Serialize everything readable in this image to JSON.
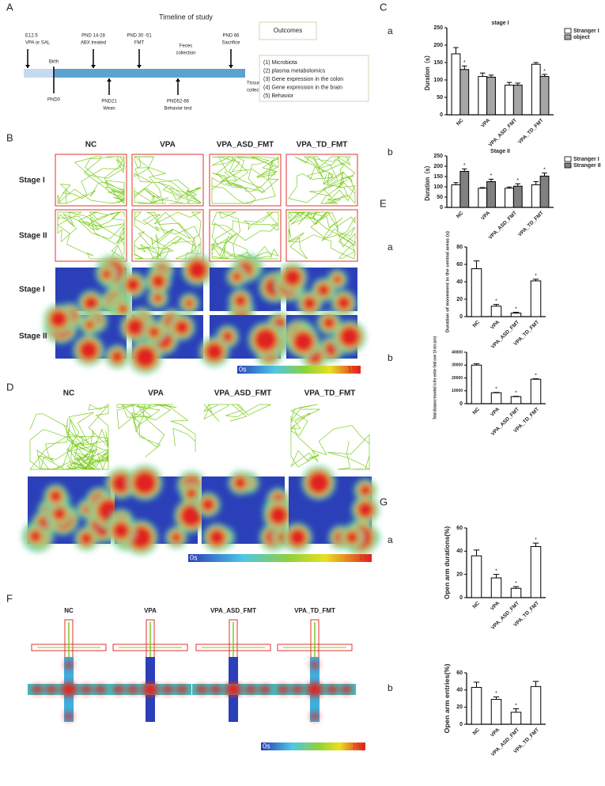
{
  "panel_letters": [
    "A",
    "B",
    "C",
    "D",
    "E",
    "F",
    "G"
  ],
  "sub_letters": [
    "a",
    "b",
    "a",
    "b",
    "a",
    "b"
  ],
  "timeline": {
    "title": "Timeline of study",
    "above": [
      [
        "E12.5",
        "VPA or SAL"
      ],
      [
        "Birth"
      ],
      [
        "PND 14-28",
        "ABX treated"
      ],
      [
        "PND 30 -51",
        "FMT"
      ],
      [
        "Feces",
        "collection"
      ],
      [
        "PND 66",
        "Sacrifice"
      ]
    ],
    "below": [
      [
        "PND0"
      ],
      [
        "PND21",
        "Wean"
      ],
      [
        "PND52-66",
        "Behavior test"
      ],
      [
        "Tissue/blood",
        "collection"
      ]
    ],
    "outcomes_title": "Outcomes",
    "outcomes": [
      "(1) Microbiota",
      "(2) plasma metabolomics",
      "(3) Gene expression  in the colon",
      "(4) Gene expression  in the brain",
      "(5) Behavior"
    ]
  },
  "groups": [
    "NC",
    "VPA",
    "VPA_ASD_FMT",
    "VPA_TD_FMT"
  ],
  "panel_b": {
    "rows": [
      "Stage I",
      "Stage II",
      "Stage I",
      "Stage II"
    ],
    "scale": [
      "0s",
      "10s"
    ]
  },
  "panel_d": {
    "scale": [
      "0s",
      "10s"
    ]
  },
  "panel_f": {
    "scale": [
      "0s",
      "10s"
    ]
  },
  "chart_data": [
    {
      "type": "bar",
      "title": "stage I",
      "ylabel": "Duration（s）",
      "categories": [
        "NC",
        "VPA",
        "VPA_ASD_FMT",
        "VPA_TD_FMT"
      ],
      "series": [
        {
          "name": "Stranger I",
          "color": "#ffffff",
          "values": [
            175,
            110,
            85,
            145
          ],
          "errors": [
            18,
            10,
            8,
            5
          ],
          "significance": [
            null,
            null,
            null,
            null
          ]
        },
        {
          "name": "object",
          "color": "#a6a6a6",
          "values": [
            130,
            108,
            85,
            110
          ],
          "errors": [
            10,
            6,
            6,
            6
          ],
          "significance": [
            "*",
            null,
            null,
            "*"
          ]
        }
      ],
      "ylim": [
        0,
        250
      ],
      "yticks": [
        0,
        50,
        100,
        150,
        200,
        250
      ]
    },
    {
      "type": "bar",
      "title": "Stage II",
      "ylabel": "Duration（s）",
      "categories": [
        "NC",
        "VPA",
        "VPA_ASD_FMT",
        "VPA_TD_FMT"
      ],
      "series": [
        {
          "name": "Stranger I",
          "color": "#ffffff",
          "values": [
            110,
            93,
            93,
            110
          ],
          "errors": [
            10,
            3,
            6,
            15
          ],
          "significance": [
            null,
            null,
            null,
            null
          ]
        },
        {
          "name": "Stranger II",
          "color": "#808080",
          "values": [
            175,
            125,
            103,
            152
          ],
          "errors": [
            12,
            12,
            12,
            15
          ],
          "significance": [
            "*",
            "*",
            "*",
            "*"
          ]
        }
      ],
      "ylim": [
        0,
        250
      ],
      "yticks": [
        0,
        50,
        100,
        150,
        200,
        250
      ]
    },
    {
      "type": "bar",
      "ylabel": "Duration of movement in the central areas (s)",
      "categories": [
        "NC",
        "VPA",
        "VPA_ASD_FMT",
        "VPA_TD_FMT"
      ],
      "series": [
        {
          "color": "#ffffff",
          "values": [
            55,
            12,
            4,
            41
          ],
          "errors": [
            9,
            2,
            1,
            2
          ],
          "significance": [
            null,
            "*",
            "*",
            "*"
          ]
        }
      ],
      "ylim": [
        0,
        80
      ],
      "yticks": [
        0,
        20,
        40,
        60,
        80
      ]
    },
    {
      "type": "bar",
      "ylabel": "Total distance traveled in the entire field over 10 min (cm)",
      "categories": [
        "NC",
        "VPA",
        "VPA_ASD_FMT",
        "VPA_TD_FMT"
      ],
      "series": [
        {
          "color": "#ffffff",
          "values": [
            30000,
            8500,
            5500,
            19000
          ],
          "errors": [
            1000,
            300,
            300,
            400
          ],
          "significance": [
            null,
            "*",
            "*",
            "*"
          ]
        }
      ],
      "ylim": [
        0,
        40000
      ],
      "yticks": [
        0,
        10000,
        20000,
        30000,
        40000
      ]
    },
    {
      "type": "bar",
      "ylabel": "Open arm durations(%)",
      "categories": [
        "NC",
        "VPA",
        "VPA_ASD_FMT",
        "VPA_TD_FMT"
      ],
      "series": [
        {
          "color": "#ffffff",
          "values": [
            36,
            17,
            8,
            44
          ],
          "errors": [
            5,
            3,
            1.5,
            3
          ],
          "significance": [
            null,
            "*",
            "*",
            "*"
          ]
        }
      ],
      "ylim": [
        0,
        60
      ],
      "yticks": [
        0,
        20,
        40,
        60
      ]
    },
    {
      "type": "bar",
      "ylabel": "Open  arm entries(%)",
      "categories": [
        "NC",
        "VPA",
        "VPA_ASD_FMT",
        "VPA_TD_FMT"
      ],
      "series": [
        {
          "color": "#ffffff",
          "values": [
            43,
            29,
            14,
            44
          ],
          "errors": [
            6,
            3,
            4,
            6
          ],
          "significance": [
            null,
            "*",
            "*",
            null
          ]
        }
      ],
      "ylim": [
        0,
        60
      ],
      "yticks": [
        0,
        20,
        40,
        60
      ]
    }
  ]
}
